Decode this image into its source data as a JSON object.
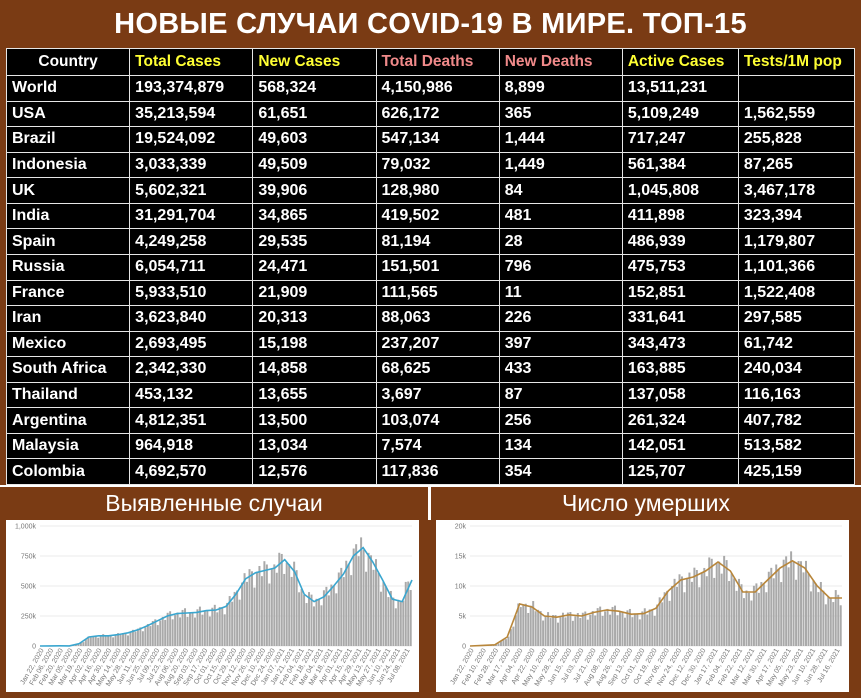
{
  "title": "НОВЫЕ СЛУЧАИ COVID-19 В МИРЕ. ТОП-15",
  "table": {
    "headers": [
      "Country",
      "Total Cases",
      "New Cases",
      "Total Deaths",
      "New Deaths",
      "Active Cases",
      "Tests/1M pop"
    ],
    "rows": [
      [
        "World",
        "193,374,879",
        "568,324",
        "4,150,986",
        "8,899",
        "13,511,231",
        ""
      ],
      [
        "USA",
        "35,213,594",
        "61,651",
        "626,172",
        "365",
        "5,109,249",
        "1,562,559"
      ],
      [
        "Brazil",
        "19,524,092",
        "49,603",
        "547,134",
        "1,444",
        "717,247",
        "255,828"
      ],
      [
        "Indonesia",
        "3,033,339",
        "49,509",
        "79,032",
        "1,449",
        "561,384",
        "87,265"
      ],
      [
        "UK",
        "5,602,321",
        "39,906",
        "128,980",
        "84",
        "1,045,808",
        "3,467,178"
      ],
      [
        "India",
        "31,291,704",
        "34,865",
        "419,502",
        "481",
        "411,898",
        "323,394"
      ],
      [
        "Spain",
        "4,249,258",
        "29,535",
        "81,194",
        "28",
        "486,939",
        "1,179,807"
      ],
      [
        "Russia",
        "6,054,711",
        "24,471",
        "151,501",
        "796",
        "475,753",
        "1,101,366"
      ],
      [
        "France",
        "5,933,510",
        "21,909",
        "111,565",
        "11",
        "152,851",
        "1,522,408"
      ],
      [
        "Iran",
        "3,623,840",
        "20,313",
        "88,063",
        "226",
        "331,641",
        "297,585"
      ],
      [
        "Mexico",
        "2,693,495",
        "15,198",
        "237,207",
        "397",
        "343,473",
        "61,742"
      ],
      [
        "South Africa",
        "2,342,330",
        "14,858",
        "68,625",
        "433",
        "163,885",
        "240,034"
      ],
      [
        "Thailand",
        "453,132",
        "13,655",
        "3,697",
        "87",
        "137,058",
        "116,163"
      ],
      [
        "Argentina",
        "4,812,351",
        "13,500",
        "103,074",
        "256",
        "261,324",
        "407,782"
      ],
      [
        "Malaysia",
        "964,918",
        "13,034",
        "7,574",
        "134",
        "142,051",
        "513,582"
      ],
      [
        "Colombia",
        "4,692,570",
        "12,576",
        "117,836",
        "354",
        "125,707",
        "425,159"
      ]
    ]
  },
  "panels": {
    "cases_title": "Выявленные случаи",
    "deaths_title": "Число умерших"
  },
  "colors": {
    "background": "#7a3b14",
    "header_yellow": "#ffff33",
    "header_pink": "#f08a8a",
    "bars": "#a9a9a9",
    "cases_line": "#3aa6cf",
    "deaths_line": "#b8863a"
  },
  "chart_data": [
    {
      "type": "bar",
      "title": "Выявленные случаи",
      "ylim": [
        0,
        1000000
      ],
      "yticks": [
        "0",
        "250k",
        "500k",
        "750k",
        "1,000k"
      ],
      "xticks": [
        "Jan 22, 2020",
        "Feb 06, 2020",
        "Feb 20, 2020",
        "Mar 05, 2020",
        "Mar 19, 2020",
        "Apr 02, 2020",
        "Apr 16, 2020",
        "Apr 30, 2020",
        "May 14, 2020",
        "May 28, 2020",
        "Jun 11, 2020",
        "Jun 25, 2020",
        "Jul 09, 2020",
        "Jul 23, 2020",
        "Aug 06, 2020",
        "Aug 20, 2020",
        "Sep 03, 2020",
        "Sep 17, 2020",
        "Oct 01, 2020",
        "Oct 15, 2020",
        "Oct 29, 2020",
        "Nov 12, 2020",
        "Nov 26, 2020",
        "Dec 10, 2020",
        "Dec 24, 2020",
        "Jan 07, 2021",
        "Jan 21, 2021",
        "Feb 04, 2021",
        "Feb 18, 2021",
        "Mar 04, 2021",
        "Mar 18, 2021",
        "Apr 01, 2021",
        "Apr 15, 2021",
        "Apr 29, 2021",
        "May 13, 2021",
        "May 27, 2021",
        "Jun 10, 2021",
        "Jun 24, 2021",
        "Jul 08, 2021"
      ],
      "trend": [
        0,
        1000,
        2000,
        1000,
        20000,
        75000,
        85000,
        85000,
        95000,
        110000,
        135000,
        170000,
        210000,
        250000,
        270000,
        275000,
        280000,
        295000,
        300000,
        330000,
        430000,
        560000,
        610000,
        630000,
        650000,
        720000,
        620000,
        430000,
        370000,
        410000,
        500000,
        600000,
        750000,
        820000,
        700000,
        550000,
        390000,
        370000,
        550000
      ]
    },
    {
      "type": "bar",
      "title": "Число умерших",
      "ylim": [
        0,
        20000
      ],
      "yticks": [
        "0",
        "5k",
        "10k",
        "15k",
        "20k"
      ],
      "xticks": [
        "Jan 22, 2020",
        "Feb 10, 2020",
        "Feb 28, 2020",
        "Mar 17, 2020",
        "Apr 04, 2020",
        "Apr 22, 2020",
        "May 10, 2020",
        "May 28, 2020",
        "Jun 15, 2020",
        "Jul 03, 2020",
        "Jul 21, 2020",
        "Aug 08, 2020",
        "Aug 26, 2020",
        "Sep 13, 2020",
        "Oct 01, 2020",
        "Oct 19, 2020",
        "Nov 06, 2020",
        "Nov 24, 2020",
        "Dec 12, 2020",
        "Dec 30, 2020",
        "Jan 17, 2021",
        "Feb 04, 2021",
        "Feb 22, 2021",
        "Mar 12, 2021",
        "Mar 30, 2021",
        "Apr 17, 2021",
        "May 05, 2021",
        "May 23, 2021",
        "Jun 10, 2021",
        "Jun 28, 2021",
        "Jul 16, 2021"
      ],
      "trend": [
        0,
        100,
        200,
        1500,
        7000,
        6500,
        5000,
        4800,
        5200,
        5000,
        5600,
        6000,
        5800,
        5300,
        5400,
        6300,
        9200,
        11000,
        11500,
        12500,
        14000,
        12500,
        9000,
        9000,
        11000,
        13000,
        14200,
        13000,
        10000,
        8000,
        8000
      ]
    }
  ]
}
